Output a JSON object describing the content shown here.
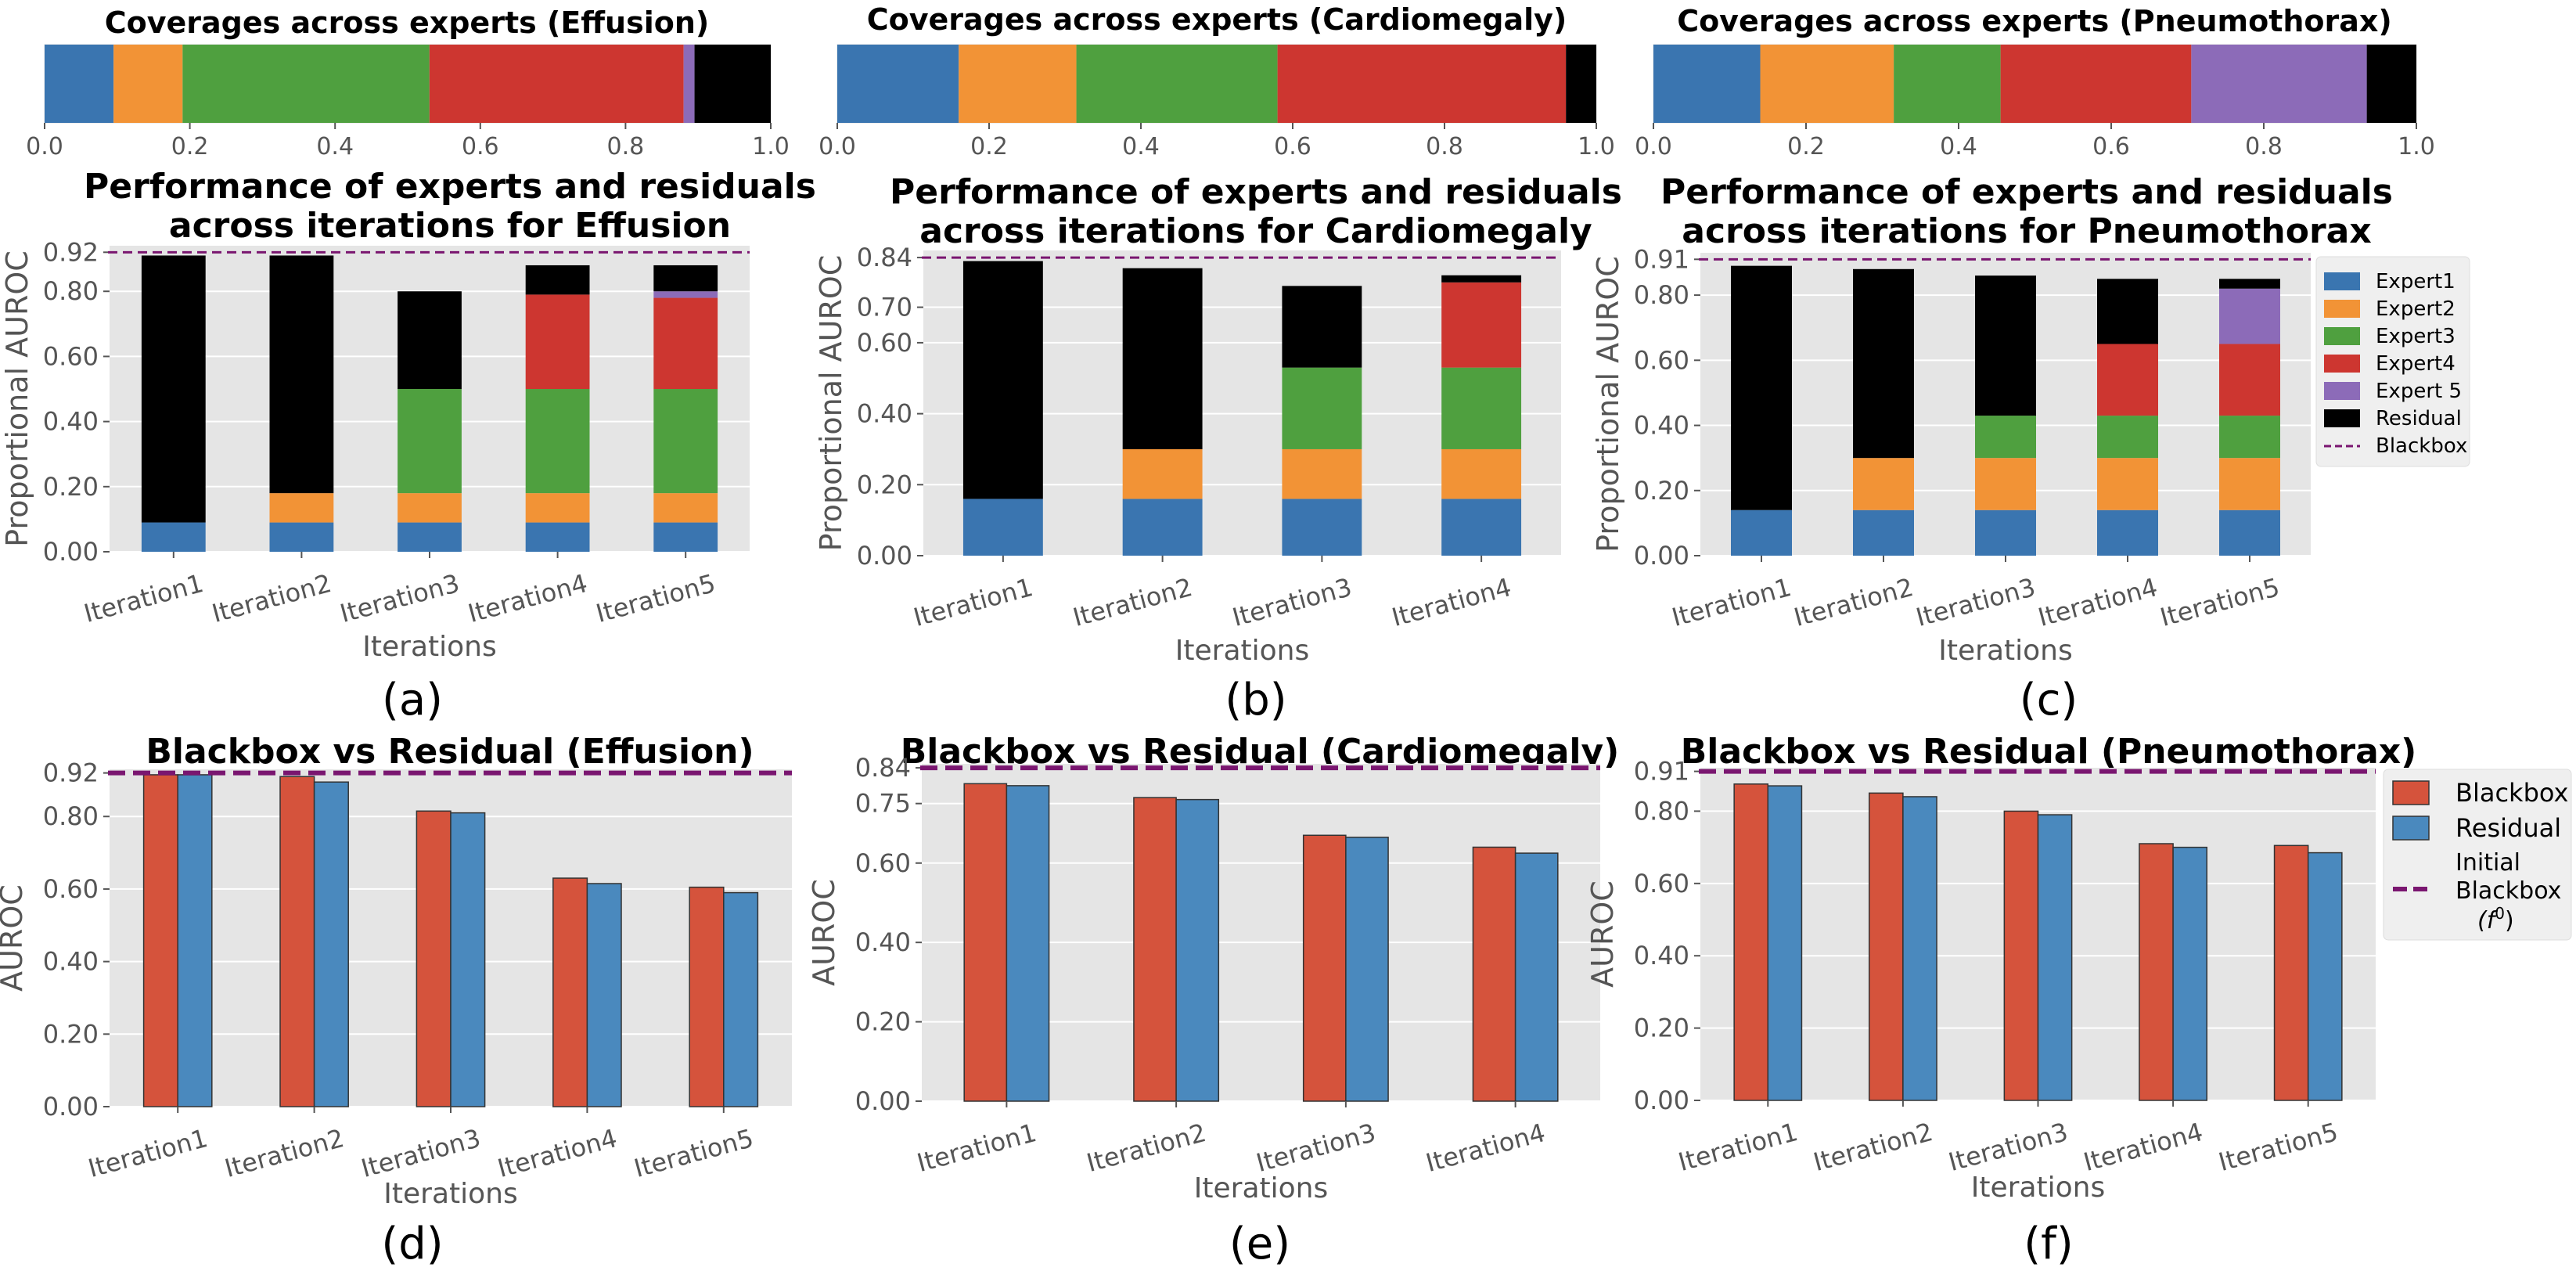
{
  "colors": {
    "Expert1": "#3a75b0",
    "Expert2": "#f29336",
    "Expert3": "#4fa03f",
    "Expert4": "#cd3630",
    "Expert 5": "#8c6bb8",
    "Residual": "#000000",
    "Blackbox_line": "#7a1670",
    "bb_bar": "#d5533c",
    "res_bar": "#4a89be",
    "axes_bg": "#e5e5e5",
    "grid": "#ffffff"
  },
  "chart_data": [
    {
      "id": "coverage-effusion",
      "type": "bar",
      "orientation": "horizontal-stacked",
      "title": "Coverages across experts (Effusion)",
      "segments": [
        {
          "name": "Expert1",
          "value": 0.095
        },
        {
          "name": "Expert2",
          "value": 0.095
        },
        {
          "name": "Expert3",
          "value": 0.34
        },
        {
          "name": "Expert4",
          "value": 0.35
        },
        {
          "name": "Expert 5",
          "value": 0.015
        },
        {
          "name": "Residual",
          "value": 0.105
        }
      ],
      "xlim": [
        0,
        1
      ],
      "xticks": [
        "0.0",
        "0.2",
        "0.4",
        "0.6",
        "0.8",
        "1.0"
      ]
    },
    {
      "id": "coverage-cardiomegaly",
      "type": "bar",
      "orientation": "horizontal-stacked",
      "title": "Coverages across experts (Cardiomegaly)",
      "segments": [
        {
          "name": "Expert1",
          "value": 0.16
        },
        {
          "name": "Expert2",
          "value": 0.155
        },
        {
          "name": "Expert3",
          "value": 0.265
        },
        {
          "name": "Expert4",
          "value": 0.38
        },
        {
          "name": "Residual",
          "value": 0.04
        }
      ],
      "xlim": [
        0,
        1
      ],
      "xticks": [
        "0.0",
        "0.2",
        "0.4",
        "0.6",
        "0.8",
        "1.0"
      ]
    },
    {
      "id": "coverage-pneumothorax",
      "type": "bar",
      "orientation": "horizontal-stacked",
      "title": "Coverages across experts (Pneumothorax)",
      "segments": [
        {
          "name": "Expert1",
          "value": 0.14
        },
        {
          "name": "Expert2",
          "value": 0.175
        },
        {
          "name": "Expert3",
          "value": 0.14
        },
        {
          "name": "Expert4",
          "value": 0.25
        },
        {
          "name": "Expert 5",
          "value": 0.23
        },
        {
          "name": "Residual",
          "value": 0.065
        }
      ],
      "xlim": [
        0,
        1
      ],
      "xticks": [
        "0.0",
        "0.2",
        "0.4",
        "0.6",
        "0.8",
        "1.0"
      ]
    },
    {
      "id": "performance-effusion",
      "type": "bar",
      "orientation": "vertical-stacked",
      "title": "Performance of experts and residuals\nacross iterations for Effusion",
      "xlabel": "Iterations",
      "ylabel": "Proportional AUROC",
      "panel_label": "(a)",
      "categories": [
        "Iteration1",
        "Iteration2",
        "Iteration3",
        "Iteration4",
        "Iteration5"
      ],
      "series": [
        {
          "name": "Expert1",
          "values": [
            0.09,
            0.09,
            0.09,
            0.09,
            0.09
          ]
        },
        {
          "name": "Expert2",
          "values": [
            0,
            0.09,
            0.09,
            0.09,
            0.09
          ]
        },
        {
          "name": "Expert3",
          "values": [
            0,
            0,
            0.32,
            0.32,
            0.32
          ]
        },
        {
          "name": "Expert4",
          "values": [
            0,
            0,
            0,
            0.29,
            0.28
          ]
        },
        {
          "name": "Expert 5",
          "values": [
            0,
            0,
            0,
            0,
            0.02
          ]
        },
        {
          "name": "Residual",
          "values": [
            0.82,
            0.73,
            0.3,
            0.09,
            0.08
          ]
        }
      ],
      "blackbox": 0.92,
      "ylim": [
        0,
        0.94
      ],
      "yticks": [
        0,
        0.2,
        0.4,
        0.6,
        0.8
      ],
      "ytick_labels": [
        "0.00",
        "0.20",
        "0.40",
        "0.60",
        "0.80"
      ],
      "blackbox_tick": "0.92"
    },
    {
      "id": "performance-cardiomegaly",
      "type": "bar",
      "orientation": "vertical-stacked",
      "title": "Performance of experts and residuals\nacross iterations for Cardiomegaly",
      "xlabel": "Iterations",
      "ylabel": "Proportional AUROC",
      "panel_label": "(b)",
      "categories": [
        "Iteration1",
        "Iteration2",
        "Iteration3",
        "Iteration4"
      ],
      "series": [
        {
          "name": "Expert1",
          "values": [
            0.16,
            0.16,
            0.16,
            0.16
          ]
        },
        {
          "name": "Expert2",
          "values": [
            0,
            0.14,
            0.14,
            0.14
          ]
        },
        {
          "name": "Expert3",
          "values": [
            0,
            0,
            0.23,
            0.23
          ]
        },
        {
          "name": "Expert4",
          "values": [
            0,
            0,
            0,
            0.24
          ]
        },
        {
          "name": "Residual",
          "values": [
            0.67,
            0.51,
            0.23,
            0.02
          ]
        }
      ],
      "blackbox": 0.84,
      "ylim": [
        0,
        0.86
      ],
      "yticks": [
        0,
        0.2,
        0.4,
        0.6,
        0.7
      ],
      "ytick_labels": [
        "0.00",
        "0.20",
        "0.40",
        "0.60",
        "0.70"
      ],
      "blackbox_tick": "0.84"
    },
    {
      "id": "performance-pneumothorax",
      "type": "bar",
      "orientation": "vertical-stacked",
      "title": "Performance of experts and residuals\nacross iterations for Pneumothorax",
      "xlabel": "Iterations",
      "ylabel": "Proportional AUROC",
      "panel_label": "(c)",
      "categories": [
        "Iteration1",
        "Iteration2",
        "Iteration3",
        "Iteration4",
        "Iteration5"
      ],
      "series": [
        {
          "name": "Expert1",
          "values": [
            0.14,
            0.14,
            0.14,
            0.14,
            0.14
          ]
        },
        {
          "name": "Expert2",
          "values": [
            0,
            0.16,
            0.16,
            0.16,
            0.16
          ]
        },
        {
          "name": "Expert3",
          "values": [
            0,
            0,
            0.13,
            0.13,
            0.13
          ]
        },
        {
          "name": "Expert4",
          "values": [
            0,
            0,
            0,
            0.22,
            0.22
          ]
        },
        {
          "name": "Expert 5",
          "values": [
            0,
            0,
            0,
            0,
            0.17
          ]
        },
        {
          "name": "Residual",
          "values": [
            0.75,
            0.58,
            0.43,
            0.2,
            0.03
          ]
        }
      ],
      "blackbox": 0.91,
      "ylim": [
        0,
        0.93
      ],
      "yticks": [
        0,
        0.2,
        0.4,
        0.6,
        0.8
      ],
      "ytick_labels": [
        "0.00",
        "0.20",
        "0.40",
        "0.60",
        "0.80"
      ],
      "blackbox_tick": "0.91",
      "legend": [
        "Expert1",
        "Expert2",
        "Expert3",
        "Expert4",
        "Expert 5",
        "Residual",
        "Blackbox"
      ]
    },
    {
      "id": "bb-vs-res-effusion",
      "type": "bar",
      "orientation": "vertical-grouped",
      "title": "Blackbox vs Residual (Effusion)",
      "xlabel": "Iterations",
      "ylabel": "AUROC",
      "panel_label": "(d)",
      "categories": [
        "Iteration1",
        "Iteration2",
        "Iteration3",
        "Iteration4",
        "Iteration5"
      ],
      "series": [
        {
          "name": "Blackbox",
          "values": [
            0.915,
            0.91,
            0.815,
            0.63,
            0.605
          ]
        },
        {
          "name": "Residual",
          "values": [
            0.915,
            0.895,
            0.81,
            0.615,
            0.59
          ]
        }
      ],
      "blackbox": 0.92,
      "ylim": [
        0,
        0.93
      ],
      "yticks": [
        0,
        0.2,
        0.4,
        0.6,
        0.8
      ],
      "ytick_labels": [
        "0.00",
        "0.20",
        "0.40",
        "0.60",
        "0.80"
      ],
      "blackbox_tick": "0.92"
    },
    {
      "id": "bb-vs-res-cardiomegaly",
      "type": "bar",
      "orientation": "vertical-grouped",
      "title": "Blackbox vs Residual (Cardiomegaly)",
      "xlabel": "Iterations",
      "ylabel": "AUROC",
      "panel_label": "(e)",
      "categories": [
        "Iteration1",
        "Iteration2",
        "Iteration3",
        "Iteration4"
      ],
      "series": [
        {
          "name": "Blackbox",
          "values": [
            0.8,
            0.765,
            0.67,
            0.64
          ]
        },
        {
          "name": "Residual",
          "values": [
            0.795,
            0.76,
            0.665,
            0.625
          ]
        }
      ],
      "blackbox": 0.84,
      "ylim": [
        0,
        0.85
      ],
      "yticks": [
        0,
        0.2,
        0.4,
        0.6,
        0.75
      ],
      "ytick_labels": [
        "0.00",
        "0.20",
        "0.40",
        "0.60",
        "0.75"
      ],
      "blackbox_tick": "0.84"
    },
    {
      "id": "bb-vs-res-pneumothorax",
      "type": "bar",
      "orientation": "vertical-grouped",
      "title": "Blackbox vs Residual (Pneumothorax)",
      "xlabel": "Iterations",
      "ylabel": "AUROC",
      "panel_label": "(f)",
      "categories": [
        "Iteration1",
        "Iteration2",
        "Iteration3",
        "Iteration4",
        "Iteration5"
      ],
      "series": [
        {
          "name": "Blackbox",
          "values": [
            0.875,
            0.85,
            0.8,
            0.71,
            0.705
          ]
        },
        {
          "name": "Residual",
          "values": [
            0.87,
            0.84,
            0.79,
            0.7,
            0.685
          ]
        }
      ],
      "blackbox": 0.91,
      "ylim": [
        0,
        0.92
      ],
      "yticks": [
        0,
        0.2,
        0.4,
        0.6,
        0.8
      ],
      "ytick_labels": [
        "0.00",
        "0.20",
        "0.40",
        "0.60",
        "0.80"
      ],
      "blackbox_tick": "0.91",
      "legend": [
        "Blackbox",
        "Residual",
        "Initial Blackbox ($f^0$)"
      ]
    }
  ],
  "legends": {
    "performance": [
      "Expert1",
      "Expert2",
      "Expert3",
      "Expert4",
      "Expert 5",
      "Residual",
      "Blackbox"
    ],
    "bb_vs_res": {
      "items": [
        "Blackbox",
        "Residual"
      ],
      "line_label": [
        "Initial",
        "Blackbox",
        "(f",
        "0",
        ")"
      ]
    }
  }
}
